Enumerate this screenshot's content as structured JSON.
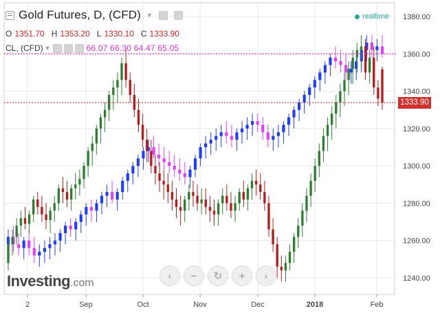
{
  "header": {
    "title": "Gold Futures, D, (CFD)",
    "ohlc": [
      {
        "label": "O",
        "value": "1351.70"
      },
      {
        "label": "H",
        "value": "1353.20"
      },
      {
        "label": "L",
        "value": "1330.10"
      },
      {
        "label": "C",
        "value": "1333.90"
      }
    ],
    "overlay_label": "CL, (CFD)",
    "overlay_values": "66.07 66.30 64.47 65.05",
    "realtime_label": "realtime"
  },
  "last_price_label": "1333.90",
  "logo": {
    "main": "Investing",
    "domain": ".com"
  },
  "nav_icons": [
    "chevron-left-icon",
    "minus-icon",
    "reset-icon",
    "plus-icon",
    "chevron-right-icon"
  ],
  "colors": {
    "up": "#2e7d32",
    "down": "#b71c1c",
    "overlay_up": "#1f3bff",
    "overlay_down": "#e040fb",
    "last_line": "#c62828",
    "overlay_line": "#d633d6",
    "grid": "#e8e8e8",
    "axis_text": "#444444"
  },
  "chart_data": {
    "type": "candlestick",
    "title": "Gold Futures, D, (CFD)",
    "x_tick_labels": [
      "2",
      "Sep",
      "Oct",
      "Nov",
      "Dec",
      "2018",
      "Feb"
    ],
    "y_ticks": [
      1240,
      1260,
      1280,
      1300,
      1320,
      1340,
      1360,
      1380
    ],
    "ylim": [
      1232,
      1388
    ],
    "grid": true,
    "last_price": 1333.9,
    "overlay_last_price_gold_scale": 1360,
    "series": [
      {
        "name": "Gold Futures",
        "note": "daily OHLC in price units, estimated from gridlines",
        "ohlc": [
          [
            1248,
            1262,
            1244,
            1258
          ],
          [
            1258,
            1266,
            1252,
            1262
          ],
          [
            1262,
            1272,
            1258,
            1268
          ],
          [
            1268,
            1276,
            1262,
            1272
          ],
          [
            1272,
            1278,
            1266,
            1269
          ],
          [
            1269,
            1276,
            1264,
            1274
          ],
          [
            1274,
            1284,
            1270,
            1282
          ],
          [
            1282,
            1286,
            1274,
            1278
          ],
          [
            1278,
            1284,
            1270,
            1274
          ],
          [
            1274,
            1280,
            1266,
            1271
          ],
          [
            1271,
            1278,
            1264,
            1276
          ],
          [
            1276,
            1284,
            1270,
            1280
          ],
          [
            1280,
            1290,
            1276,
            1288
          ],
          [
            1288,
            1294,
            1280,
            1286
          ],
          [
            1286,
            1292,
            1278,
            1282
          ],
          [
            1282,
            1290,
            1276,
            1288
          ],
          [
            1288,
            1296,
            1282,
            1290
          ],
          [
            1290,
            1298,
            1284,
            1293
          ],
          [
            1293,
            1302,
            1288,
            1300
          ],
          [
            1300,
            1310,
            1294,
            1308
          ],
          [
            1308,
            1316,
            1300,
            1312
          ],
          [
            1312,
            1322,
            1306,
            1320
          ],
          [
            1320,
            1328,
            1312,
            1326
          ],
          [
            1326,
            1334,
            1318,
            1330
          ],
          [
            1330,
            1340,
            1324,
            1338
          ],
          [
            1338,
            1346,
            1330,
            1342
          ],
          [
            1342,
            1350,
            1334,
            1346
          ],
          [
            1346,
            1358,
            1338,
            1355
          ],
          [
            1355,
            1363,
            1342,
            1346
          ],
          [
            1346,
            1350,
            1334,
            1338
          ],
          [
            1338,
            1344,
            1326,
            1330
          ],
          [
            1330,
            1336,
            1318,
            1322
          ],
          [
            1322,
            1328,
            1310,
            1314
          ],
          [
            1314,
            1320,
            1302,
            1308
          ],
          [
            1308,
            1314,
            1296,
            1300
          ],
          [
            1300,
            1306,
            1290,
            1296
          ],
          [
            1296,
            1302,
            1286,
            1292
          ],
          [
            1292,
            1298,
            1282,
            1290
          ],
          [
            1290,
            1296,
            1280,
            1286
          ],
          [
            1286,
            1292,
            1276,
            1282
          ],
          [
            1282,
            1288,
            1272,
            1278
          ],
          [
            1278,
            1284,
            1268,
            1276
          ],
          [
            1276,
            1284,
            1270,
            1282
          ],
          [
            1282,
            1290,
            1276,
            1286
          ],
          [
            1286,
            1292,
            1278,
            1284
          ],
          [
            1284,
            1290,
            1276,
            1280
          ],
          [
            1280,
            1288,
            1274,
            1282
          ],
          [
            1282,
            1288,
            1274,
            1278
          ],
          [
            1278,
            1284,
            1270,
            1276
          ],
          [
            1276,
            1282,
            1268,
            1274
          ],
          [
            1274,
            1282,
            1268,
            1280
          ],
          [
            1280,
            1288,
            1274,
            1284
          ],
          [
            1284,
            1290,
            1276,
            1280
          ],
          [
            1280,
            1286,
            1272,
            1276
          ],
          [
            1276,
            1284,
            1270,
            1280
          ],
          [
            1280,
            1288,
            1276,
            1286
          ],
          [
            1286,
            1292,
            1278,
            1282
          ],
          [
            1282,
            1290,
            1276,
            1288
          ],
          [
            1288,
            1296,
            1282,
            1292
          ],
          [
            1292,
            1298,
            1284,
            1290
          ],
          [
            1290,
            1296,
            1282,
            1286
          ],
          [
            1286,
            1292,
            1276,
            1280
          ],
          [
            1280,
            1284,
            1262,
            1266
          ],
          [
            1266,
            1272,
            1254,
            1258
          ],
          [
            1258,
            1262,
            1240,
            1246
          ],
          [
            1246,
            1252,
            1238,
            1244
          ],
          [
            1244,
            1252,
            1238,
            1248
          ],
          [
            1248,
            1258,
            1244,
            1254
          ],
          [
            1254,
            1264,
            1248,
            1262
          ],
          [
            1262,
            1272,
            1256,
            1268
          ],
          [
            1268,
            1280,
            1262,
            1276
          ],
          [
            1276,
            1288,
            1270,
            1284
          ],
          [
            1284,
            1296,
            1278,
            1292
          ],
          [
            1292,
            1304,
            1286,
            1300
          ],
          [
            1300,
            1312,
            1294,
            1308
          ],
          [
            1308,
            1320,
            1302,
            1316
          ],
          [
            1316,
            1326,
            1308,
            1322
          ],
          [
            1322,
            1332,
            1314,
            1328
          ],
          [
            1328,
            1338,
            1320,
            1334
          ],
          [
            1334,
            1344,
            1326,
            1340
          ],
          [
            1340,
            1350,
            1332,
            1346
          ],
          [
            1346,
            1356,
            1338,
            1352
          ],
          [
            1352,
            1362,
            1344,
            1358
          ],
          [
            1358,
            1366,
            1350,
            1362
          ],
          [
            1362,
            1370,
            1352,
            1364
          ],
          [
            1364,
            1368,
            1346,
            1350
          ],
          [
            1350,
            1362,
            1344,
            1358
          ],
          [
            1358,
            1364,
            1338,
            1342
          ],
          [
            1342,
            1346,
            1332,
            1336
          ],
          [
            1351.7,
            1353.2,
            1330.1,
            1333.9
          ]
        ]
      },
      {
        "name": "CL, (CFD)",
        "note": "crude oil candles plotted on gold price scale, estimated",
        "ohlc": [
          [
            1258,
            1266,
            1252,
            1262
          ],
          [
            1262,
            1268,
            1254,
            1258
          ],
          [
            1258,
            1264,
            1252,
            1256
          ],
          [
            1256,
            1262,
            1250,
            1260
          ],
          [
            1260,
            1266,
            1252,
            1256
          ],
          [
            1256,
            1262,
            1248,
            1252
          ],
          [
            1252,
            1258,
            1246,
            1254
          ],
          [
            1254,
            1260,
            1248,
            1256
          ],
          [
            1256,
            1262,
            1250,
            1258
          ],
          [
            1258,
            1264,
            1252,
            1260
          ],
          [
            1260,
            1266,
            1254,
            1264
          ],
          [
            1264,
            1270,
            1258,
            1268
          ],
          [
            1268,
            1272,
            1262,
            1266
          ],
          [
            1266,
            1272,
            1260,
            1270
          ],
          [
            1270,
            1276,
            1264,
            1274
          ],
          [
            1274,
            1280,
            1268,
            1278
          ],
          [
            1278,
            1282,
            1270,
            1276
          ],
          [
            1276,
            1282,
            1270,
            1280
          ],
          [
            1280,
            1286,
            1274,
            1284
          ],
          [
            1284,
            1290,
            1278,
            1286
          ],
          [
            1286,
            1292,
            1280,
            1282
          ],
          [
            1282,
            1288,
            1276,
            1286
          ],
          [
            1286,
            1294,
            1282,
            1292
          ],
          [
            1292,
            1298,
            1286,
            1296
          ],
          [
            1296,
            1302,
            1290,
            1300
          ],
          [
            1300,
            1306,
            1294,
            1304
          ],
          [
            1304,
            1310,
            1298,
            1308
          ],
          [
            1308,
            1314,
            1302,
            1310
          ],
          [
            1310,
            1316,
            1304,
            1306
          ],
          [
            1306,
            1312,
            1300,
            1304
          ],
          [
            1304,
            1310,
            1298,
            1302
          ],
          [
            1302,
            1308,
            1296,
            1300
          ],
          [
            1300,
            1306,
            1294,
            1298
          ],
          [
            1298,
            1304,
            1292,
            1296
          ],
          [
            1296,
            1302,
            1290,
            1294
          ],
          [
            1294,
            1300,
            1288,
            1298
          ],
          [
            1298,
            1306,
            1294,
            1304
          ],
          [
            1304,
            1312,
            1300,
            1310
          ],
          [
            1310,
            1316,
            1304,
            1312
          ],
          [
            1312,
            1318,
            1306,
            1314
          ],
          [
            1314,
            1320,
            1308,
            1316
          ],
          [
            1316,
            1322,
            1310,
            1318
          ],
          [
            1318,
            1324,
            1312,
            1316
          ],
          [
            1316,
            1322,
            1310,
            1314
          ],
          [
            1314,
            1320,
            1308,
            1318
          ],
          [
            1318,
            1324,
            1312,
            1320
          ],
          [
            1320,
            1326,
            1314,
            1322
          ],
          [
            1322,
            1328,
            1316,
            1324
          ],
          [
            1324,
            1328,
            1318,
            1322
          ],
          [
            1322,
            1326,
            1314,
            1318
          ],
          [
            1318,
            1322,
            1310,
            1314
          ],
          [
            1314,
            1320,
            1308,
            1316
          ],
          [
            1316,
            1322,
            1310,
            1318
          ],
          [
            1318,
            1324,
            1312,
            1322
          ],
          [
            1322,
            1328,
            1316,
            1326
          ],
          [
            1326,
            1332,
            1320,
            1330
          ],
          [
            1330,
            1336,
            1324,
            1334
          ],
          [
            1334,
            1340,
            1328,
            1338
          ],
          [
            1338,
            1344,
            1332,
            1342
          ],
          [
            1342,
            1348,
            1336,
            1346
          ],
          [
            1346,
            1352,
            1340,
            1350
          ],
          [
            1350,
            1356,
            1344,
            1354
          ],
          [
            1354,
            1360,
            1348,
            1358
          ],
          [
            1358,
            1364,
            1352,
            1356
          ],
          [
            1356,
            1362,
            1350,
            1354
          ],
          [
            1354,
            1360,
            1346,
            1350
          ],
          [
            1350,
            1356,
            1344,
            1352
          ],
          [
            1352,
            1358,
            1346,
            1356
          ],
          [
            1356,
            1364,
            1350,
            1362
          ],
          [
            1362,
            1370,
            1356,
            1366
          ],
          [
            1366,
            1370,
            1358,
            1362
          ],
          [
            1362,
            1368,
            1356,
            1364
          ],
          [
            1364,
            1370,
            1358,
            1360
          ]
        ]
      }
    ]
  }
}
